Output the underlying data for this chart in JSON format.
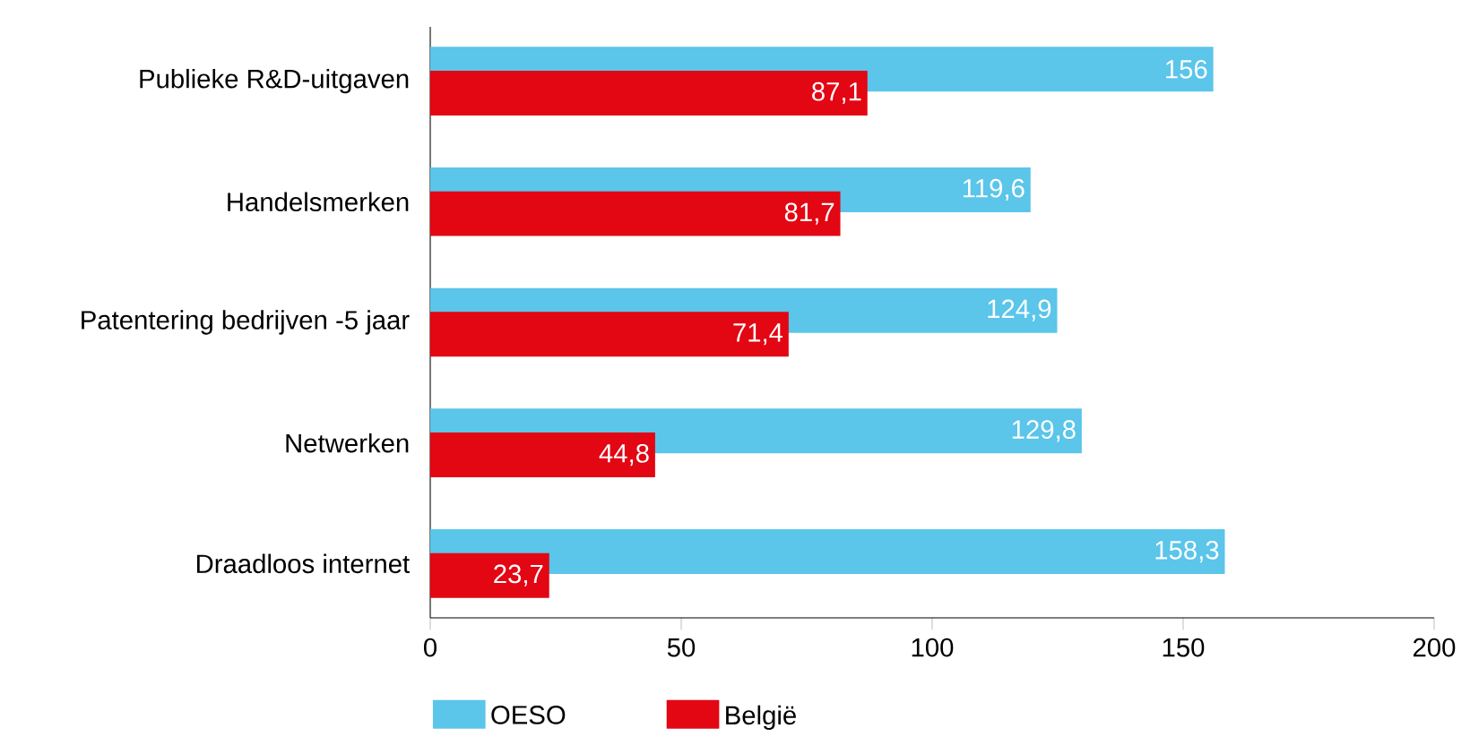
{
  "chart_data": {
    "type": "bar",
    "orientation": "horizontal",
    "categories": [
      "Publieke R&D-uitgaven",
      "Handelsmerken",
      "Patentering bedrijven -5 jaar",
      "Netwerken",
      "Draadloos internet"
    ],
    "series": [
      {
        "name": "OESO",
        "color": "#5bc5ea",
        "values": [
          156,
          119.6,
          124.9,
          129.8,
          158.3
        ],
        "value_labels": [
          "156",
          "119,6",
          "124,9",
          "129,8",
          "158,3"
        ]
      },
      {
        "name": "België",
        "color": "#e30613",
        "values": [
          87.1,
          81.7,
          71.4,
          44.8,
          23.7
        ],
        "value_labels": [
          "87,1",
          "81,7",
          "71,4",
          "44,8",
          "23,7"
        ]
      }
    ],
    "xlim": [
      0,
      200
    ],
    "xticks": [
      0,
      50,
      100,
      150,
      200
    ],
    "grid": false,
    "legend": "bottom"
  }
}
